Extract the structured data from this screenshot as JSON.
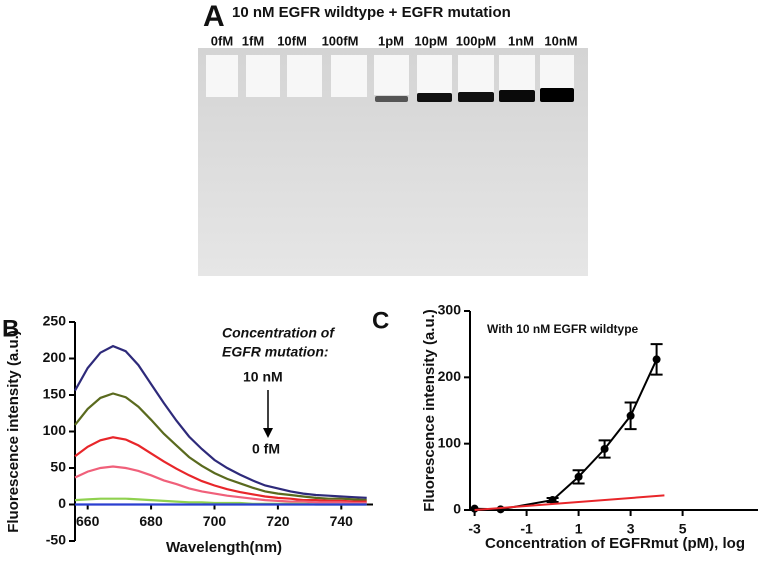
{
  "gel": {
    "label": "A",
    "title": "10 nM EGFR wildtype + EGFR mutation",
    "lanes": [
      "0fM",
      "1fM",
      "10fM",
      "100fM",
      "1pM",
      "10pM",
      "100pM",
      "1nM",
      "10nM"
    ]
  },
  "chart_data": [
    {
      "type": "line",
      "label": "B",
      "xlabel": "Wavelength(nm)",
      "ylabel": "Fluorescence intensity (a.u.)",
      "annotations": [
        "Concentration of",
        "EGFR mutation:",
        "10 nM",
        "0 fM"
      ],
      "x": [
        656,
        660,
        664,
        668,
        672,
        676,
        680,
        684,
        688,
        692,
        696,
        700,
        704,
        708,
        712,
        716,
        720,
        724,
        728,
        732,
        736,
        740,
        744,
        748
      ],
      "series": [
        {
          "color": "#2e2a7a",
          "values": [
            156,
            187,
            208,
            217,
            210,
            191,
            165,
            139,
            115,
            93,
            76,
            61,
            50,
            41,
            33,
            26,
            22,
            18,
            15,
            13,
            12,
            11,
            10,
            9
          ]
        },
        {
          "color": "#5a6a1e",
          "values": [
            109,
            131,
            146,
            152,
            147,
            134,
            116,
            97,
            81,
            65,
            53,
            43,
            35,
            29,
            23,
            18,
            15,
            13,
            11,
            9,
            8,
            8,
            7,
            6
          ]
        },
        {
          "color": "#e8262a",
          "values": [
            66,
            79,
            88,
            92,
            89,
            81,
            70,
            59,
            49,
            40,
            32,
            26,
            21,
            17,
            14,
            11,
            9,
            8,
            6,
            6,
            5,
            5,
            4,
            4
          ]
        },
        {
          "color": "#f0607a",
          "values": [
            37,
            45,
            50,
            52,
            50,
            46,
            40,
            33,
            28,
            22,
            18,
            15,
            12,
            10,
            8,
            6,
            5,
            4,
            4,
            3,
            3,
            3,
            2,
            2
          ]
        },
        {
          "color": "#8fd14f",
          "values": [
            6,
            7,
            8,
            8,
            8,
            7,
            6,
            5,
            4,
            3,
            3,
            2,
            2,
            2,
            1,
            1,
            1,
            1,
            1,
            0,
            0,
            0,
            0,
            0
          ]
        },
        {
          "color": "#2a3fd0",
          "values": [
            0,
            0,
            0,
            0,
            0,
            0,
            0,
            0,
            0,
            0,
            0,
            0,
            0,
            0,
            0,
            0,
            0,
            0,
            0,
            0,
            0,
            0,
            0,
            0
          ]
        }
      ],
      "xlim": [
        656,
        750
      ],
      "ylim": [
        -50,
        250
      ],
      "xticks": [
        660,
        680,
        700,
        720,
        740
      ],
      "yticks": [
        -50,
        0,
        50,
        100,
        150,
        200,
        250
      ]
    },
    {
      "type": "scatter",
      "label": "C",
      "title": "With 10 nM EGFR wildtype",
      "xlabel": "Concentration of EGFRmut (pM), log",
      "ylabel": "Fluorescence intensity (a.u.)",
      "series": [
        {
          "color": "#000000",
          "x": [
            -3,
            -2,
            0,
            1,
            2,
            3,
            4
          ],
          "values": [
            2,
            1,
            15,
            50,
            92,
            142,
            227
          ],
          "errors": [
            0,
            0,
            3,
            10,
            13,
            20,
            23
          ]
        },
        {
          "color": "#e8262a",
          "x": [
            -3,
            4.3
          ],
          "values": [
            0,
            22
          ]
        }
      ],
      "xlim": [
        -3.1,
        7.9
      ],
      "ylim": [
        0,
        300
      ],
      "xticks": [
        -3,
        -1,
        1,
        3,
        5
      ],
      "yticks": [
        0,
        100,
        200,
        300
      ]
    }
  ]
}
